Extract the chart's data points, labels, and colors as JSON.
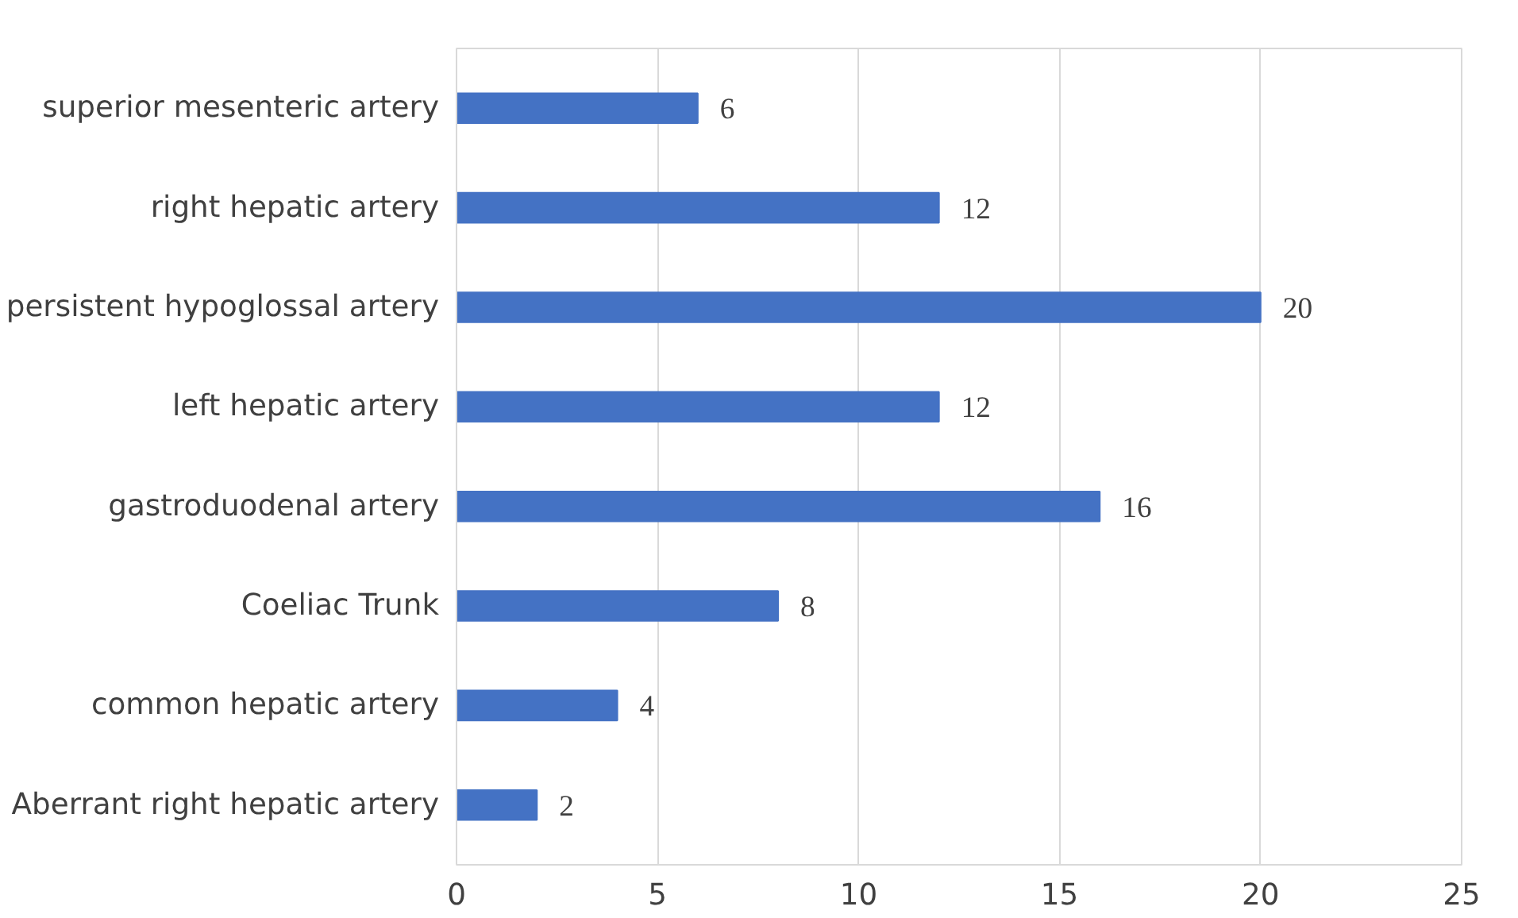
{
  "chart_data": {
    "type": "bar",
    "orientation": "horizontal",
    "categories": [
      "superior mesenteric artery",
      "right hepatic artery",
      "persistent hypoglossal artery",
      "left hepatic artery",
      "gastroduodenal artery",
      "Coeliac Trunk",
      "common hepatic artery",
      "Aberrant right hepatic artery"
    ],
    "values": [
      6,
      12,
      20,
      12,
      16,
      8,
      4,
      2
    ],
    "color": "#4472c4",
    "xlim": [
      0,
      25
    ],
    "xticks": [
      0,
      5,
      10,
      15,
      20,
      25
    ],
    "grid": "x",
    "data_labels": true
  }
}
